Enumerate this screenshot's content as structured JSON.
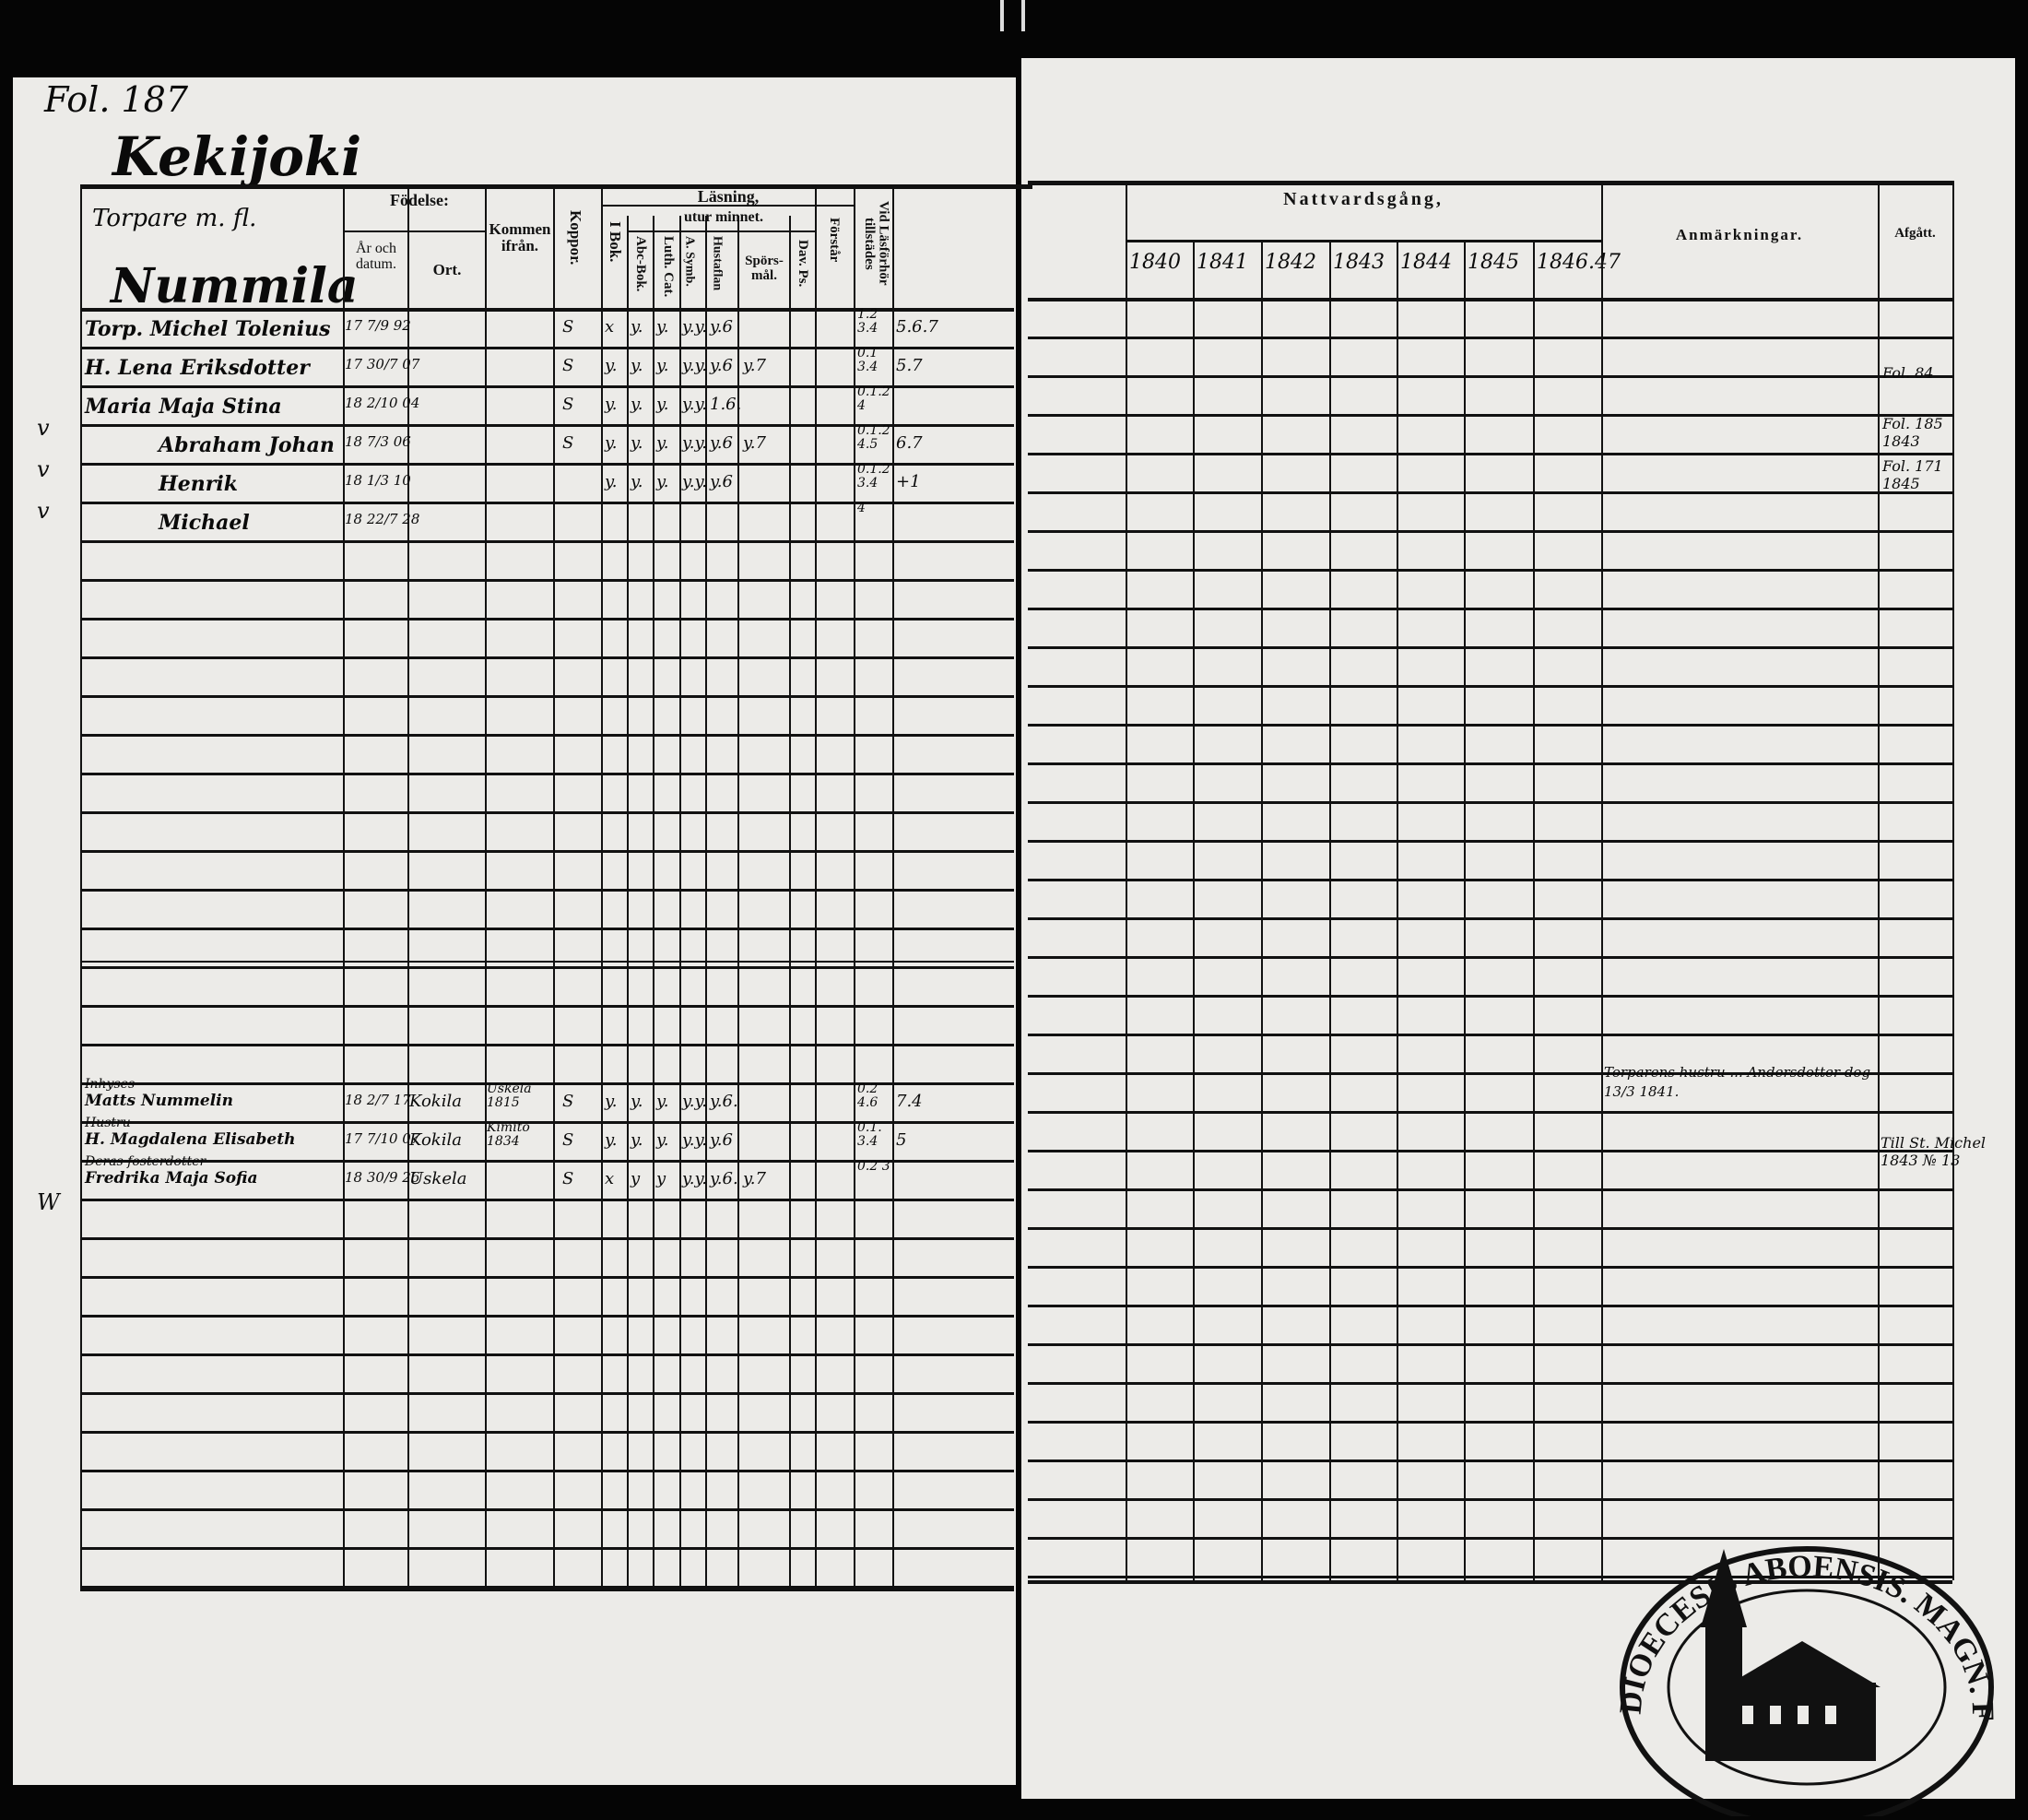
{
  "left_page": {
    "folio": "Fol. 187",
    "parish": "Kekijoki",
    "section": "Torpare m. fl.",
    "village": "Nummila",
    "headers": {
      "fodelse": "Födelse:",
      "ar_och_datum": "År och datum.",
      "ort": "Ort.",
      "kommen_ifran": "Kommen ifrån.",
      "koppor": "Koppor.",
      "lasning": "Läsning,",
      "i_bok": "I Bok.",
      "utur_minnet": "utur minnet.",
      "abc_bok": "Abc-Bok.",
      "luth_cat": "Luth. Cat.",
      "a_symb": "A. Symb.",
      "hustaflan": "Hustaflan",
      "sporsmal": "Spörs-mål.",
      "dav_ps": "Dav. Ps.",
      "forstar": "Förstår",
      "vid_lasforhor": "Vid Läsförhör tillstädes"
    },
    "rows": [
      {
        "name": "Torp. Michel Tolenius",
        "born": "17 7/9 92",
        "place": "",
        "from": "",
        "koppor": "S",
        "ibok": "x",
        "abc": "y.",
        "luth": "y.",
        "symb": "y.y.",
        "husta": "y.6",
        "spors": "",
        "dav": "",
        "forst": "",
        "lasf": "1.2 3.4",
        "extra": "5.6.7"
      },
      {
        "name": "H. Lena Eriksdotter",
        "born": "17 30/7 07",
        "place": "",
        "from": "",
        "koppor": "S",
        "ibok": "y.",
        "abc": "y.",
        "luth": "y.",
        "symb": "y.y.",
        "husta": "y.6",
        "spors": "y.7",
        "dav": "",
        "forst": "",
        "lasf": "0.1 3.4",
        "extra": "5.7"
      },
      {
        "name": "Maria Maja Stina",
        "born": "18 2/10 04",
        "place": "",
        "from": "",
        "koppor": "S",
        "ibok": "y.",
        "abc": "y.",
        "luth": "y.",
        "symb": "y.y.",
        "husta": "1.6.",
        "spors": "",
        "dav": "",
        "forst": "",
        "lasf": "0.1.2 4",
        "extra": ""
      },
      {
        "name": "Abraham Johan",
        "born": "18 7/3 06",
        "place": "",
        "from": "",
        "koppor": "S",
        "ibok": "y.",
        "abc": "y.",
        "luth": "y.",
        "symb": "y.y.",
        "husta": "y.6",
        "spors": "y.7",
        "dav": "",
        "forst": "",
        "lasf": "0.1.2 4.5",
        "extra": "6.7"
      },
      {
        "name": "Henrik",
        "born": "18 1/3 10",
        "place": "",
        "from": "",
        "koppor": "",
        "ibok": "y.",
        "abc": "y.",
        "luth": "y.",
        "symb": "y.y.",
        "husta": "y.6",
        "spors": "",
        "dav": "",
        "forst": "",
        "lasf": "0.1.2 3.4",
        "extra": "+1"
      },
      {
        "name": "Michael",
        "born": "18 22/7 28",
        "place": "",
        "from": "",
        "koppor": "",
        "ibok": "",
        "abc": "",
        "luth": "",
        "symb": "",
        "husta": "",
        "spors": "",
        "dav": "",
        "forst": "",
        "lasf": "4",
        "extra": ""
      }
    ],
    "lower_rows": [
      {
        "pre": "Inhyses",
        "name": "Matts Nummelin",
        "born": "18 2/7 17",
        "place": "Kokila",
        "from": "Uskela 1815",
        "koppor": "S",
        "ibok": "y.",
        "abc": "y.",
        "luth": "y.",
        "symb": "y.y.",
        "husta": "y.6.",
        "spors": "",
        "dav": "",
        "forst": "",
        "lasf": "0.2 4.6",
        "extra": "7.4"
      },
      {
        "pre": "Hustru",
        "name": "H. Magdalena Elisabeth",
        "born": "17 7/10 07",
        "place": "Kokila",
        "from": "Kimito 1834",
        "koppor": "S",
        "ibok": "y.",
        "abc": "y.",
        "luth": "y.",
        "symb": "y.y.",
        "husta": "y.6",
        "spors": "",
        "dav": "",
        "forst": "",
        "lasf": "0.1. 3.4",
        "extra": "5"
      },
      {
        "pre": "Deras fosterdotter",
        "name": "Fredrika Maja Sofia",
        "born": "18 30/9 26",
        "place": "Uskela",
        "from": "",
        "koppor": "S",
        "ibok": "x",
        "abc": "y",
        "luth": "y",
        "symb": "y.y.",
        "husta": "y.6.",
        "spors": "y.7",
        "dav": "",
        "forst": "",
        "lasf": "0.2 3",
        "extra": ""
      }
    ],
    "margin_marks": [
      "v",
      "v",
      "v",
      "W"
    ]
  },
  "right_page": {
    "nattvardsgang": "Nattvardsgång,",
    "years": [
      "1840",
      "1841",
      "1842",
      "1843",
      "1844",
      "1845",
      "1846.47"
    ],
    "anmarkningar": "Anmärkningar.",
    "afgatt": "Afgått.",
    "remark_lower": "Torparens hustru ... Andersdotter dog 13/3 1841.",
    "afgatt_entries": [
      "Fol. 84",
      "Fol. 185 1843",
      "Fol. 171 1845"
    ],
    "afgatt_lower": "Till St. Michel 1843 № 13"
  },
  "stamp": {
    "text": "DIOECESIS ABOENSIS. MAGN. FINL."
  }
}
